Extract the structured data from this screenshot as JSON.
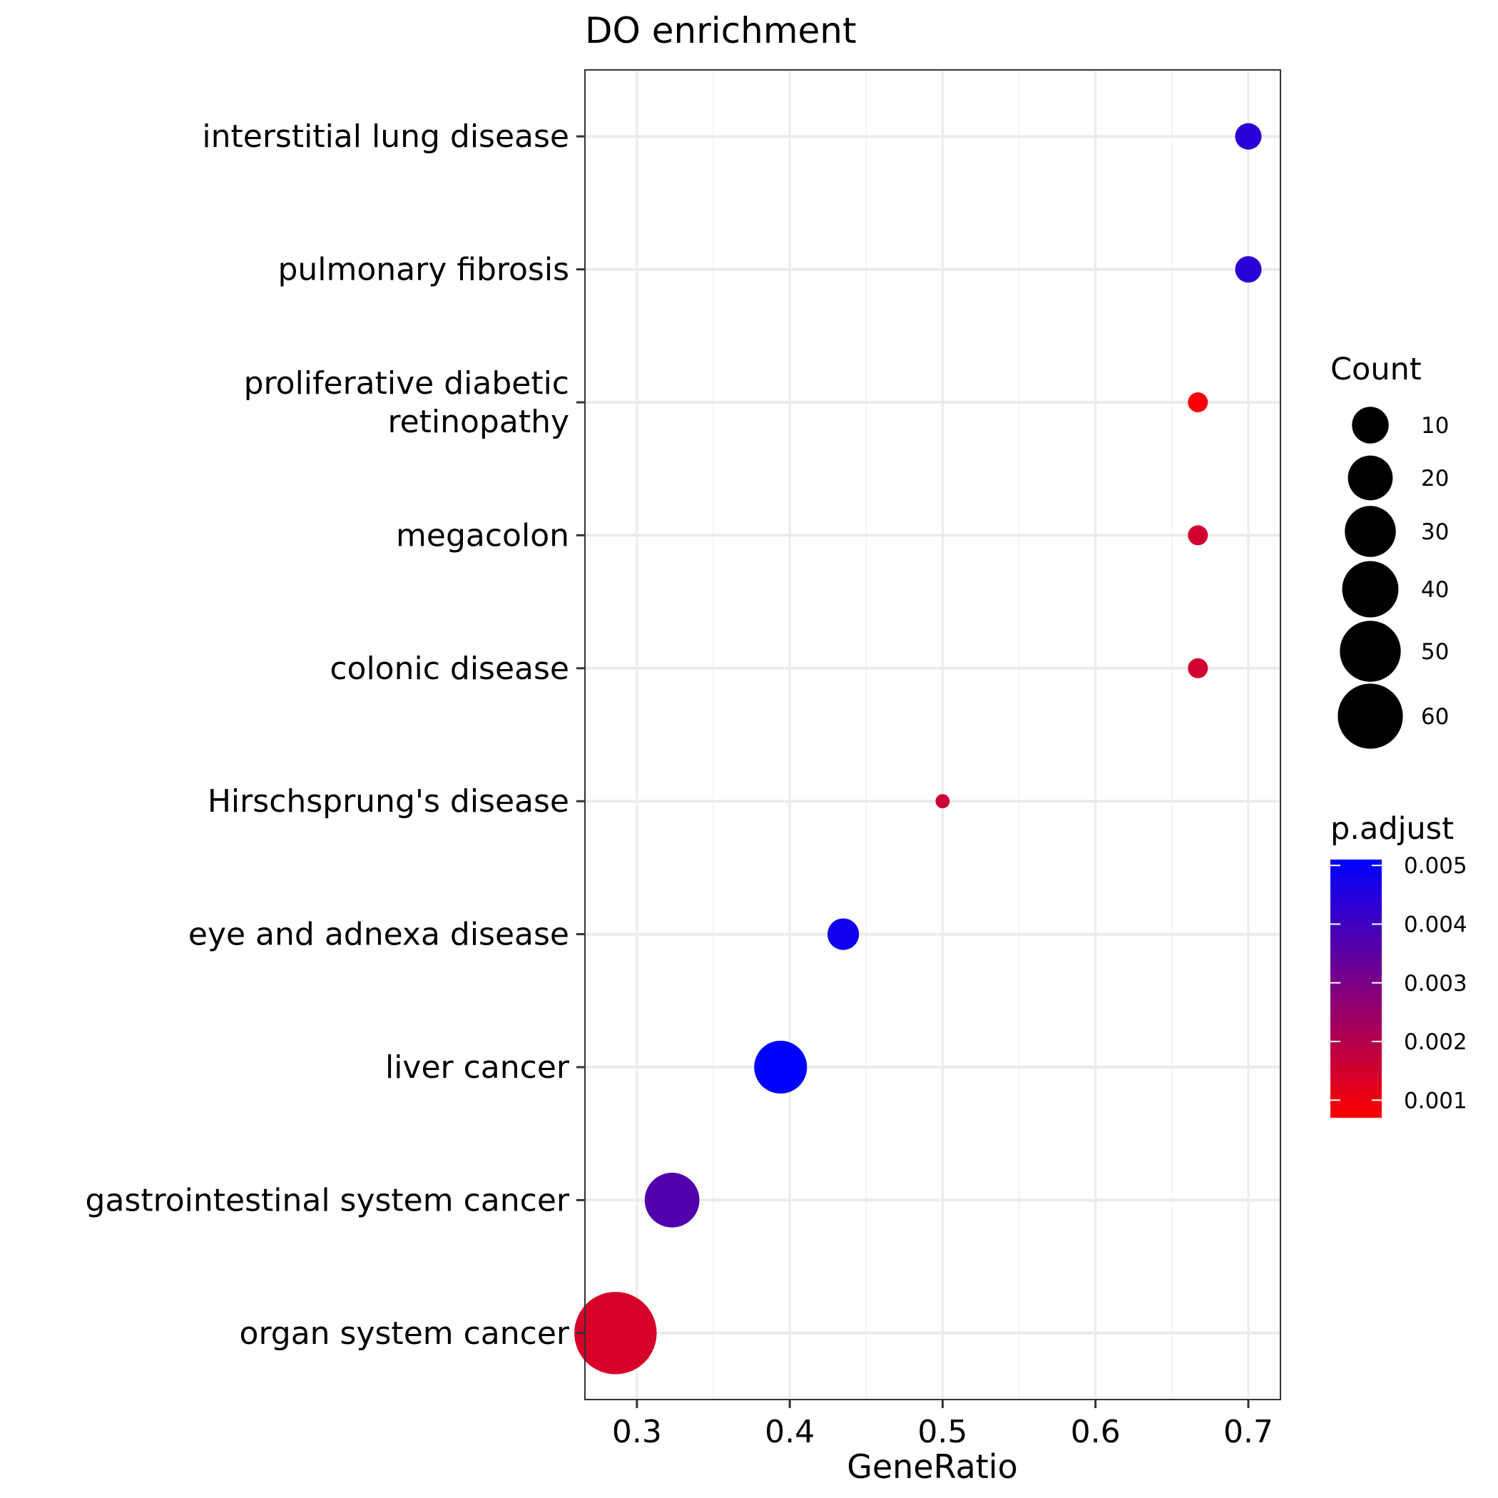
{
  "chart_data": {
    "type": "scatter",
    "title": "DO enrichment",
    "xlabel": "GeneRatio",
    "ylabel": "",
    "xlim": [
      0.266,
      0.721
    ],
    "xticks": [
      0.3,
      0.4,
      0.5,
      0.6,
      0.7
    ],
    "xtick_labels": [
      "0.3",
      "0.4",
      "0.5",
      "0.6",
      "0.7"
    ],
    "grid": true,
    "categories": [
      [
        "interstitial lung disease"
      ],
      [
        "pulmonary fibrosis"
      ],
      [
        "proliferative diabetic",
        "retinopathy"
      ],
      [
        "megacolon"
      ],
      [
        "colonic disease"
      ],
      [
        "Hirschsprung's disease"
      ],
      [
        "eye and adnexa disease"
      ],
      [
        "liver cancer"
      ],
      [
        "gastrointestinal system cancer"
      ],
      [
        "organ system cancer"
      ]
    ],
    "points": [
      {
        "gene_ratio": 0.7,
        "count": 7,
        "p_adjust": 0.0044
      },
      {
        "gene_ratio": 0.7,
        "count": 7,
        "p_adjust": 0.0044
      },
      {
        "gene_ratio": 0.667,
        "count": 4,
        "p_adjust": 0.0008
      },
      {
        "gene_ratio": 0.667,
        "count": 4,
        "p_adjust": 0.0015
      },
      {
        "gene_ratio": 0.667,
        "count": 4,
        "p_adjust": 0.0015
      },
      {
        "gene_ratio": 0.5,
        "count": 2,
        "p_adjust": 0.0016
      },
      {
        "gene_ratio": 0.435,
        "count": 10,
        "p_adjust": 0.0048
      },
      {
        "gene_ratio": 0.394,
        "count": 28,
        "p_adjust": 0.0051
      },
      {
        "gene_ratio": 0.323,
        "count": 30,
        "p_adjust": 0.0037
      },
      {
        "gene_ratio": 0.286,
        "count": 68,
        "p_adjust": 0.0014
      }
    ],
    "size_legend": {
      "title": "Count",
      "values": [
        10,
        20,
        30,
        40,
        50,
        60
      ],
      "labels": [
        "10",
        "20",
        "30",
        "40",
        "50",
        "60"
      ]
    },
    "color_legend": {
      "title": "p.adjust",
      "low_value": 0.0007,
      "high_value": 0.0051,
      "low_color": "#ff0000",
      "high_color": "#0000ff",
      "ticks": [
        0.005,
        0.004,
        0.003,
        0.002,
        0.001
      ],
      "labels": [
        "0.005",
        "0.004",
        "0.003",
        "0.002",
        "0.001"
      ]
    },
    "colors": {
      "panel_border": "#333333",
      "grid_major": "#ebebeb",
      "grid_minor": "#f5f5f5"
    }
  }
}
